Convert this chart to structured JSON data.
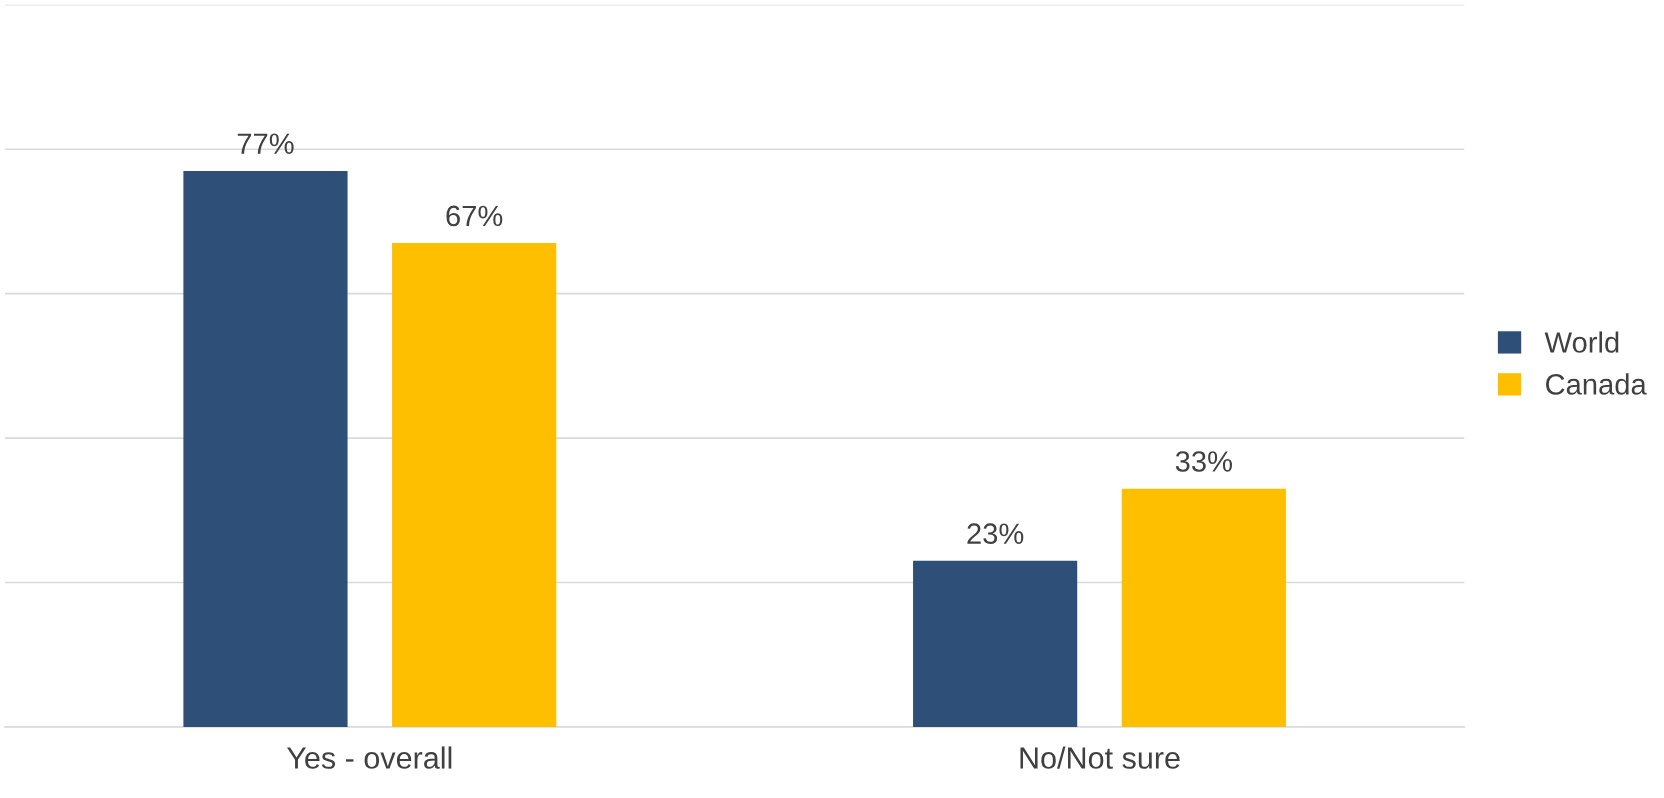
{
  "chart_data": {
    "type": "bar",
    "categories": [
      "Yes - overall",
      "No/Not sure"
    ],
    "series": [
      {
        "name": "World",
        "color": "#2e4f78",
        "values": [
          77,
          23
        ],
        "value_labels": [
          "77%",
          "23%"
        ]
      },
      {
        "name": "Canada",
        "color": "#fdbf00",
        "values": [
          67,
          33
        ],
        "value_labels": [
          "67%",
          "33%"
        ]
      }
    ],
    "ylim": [
      0,
      100
    ],
    "yticks": [
      {
        "value": 0,
        "label": null
      },
      {
        "value": 20,
        "label": null
      },
      {
        "value": 40,
        "label": null
      },
      {
        "value": 60,
        "label": null
      },
      {
        "value": 80,
        "label": null
      },
      {
        "value": 100,
        "label": null
      }
    ],
    "tick_labels": "x",
    "grid": "y",
    "legend": "right"
  }
}
